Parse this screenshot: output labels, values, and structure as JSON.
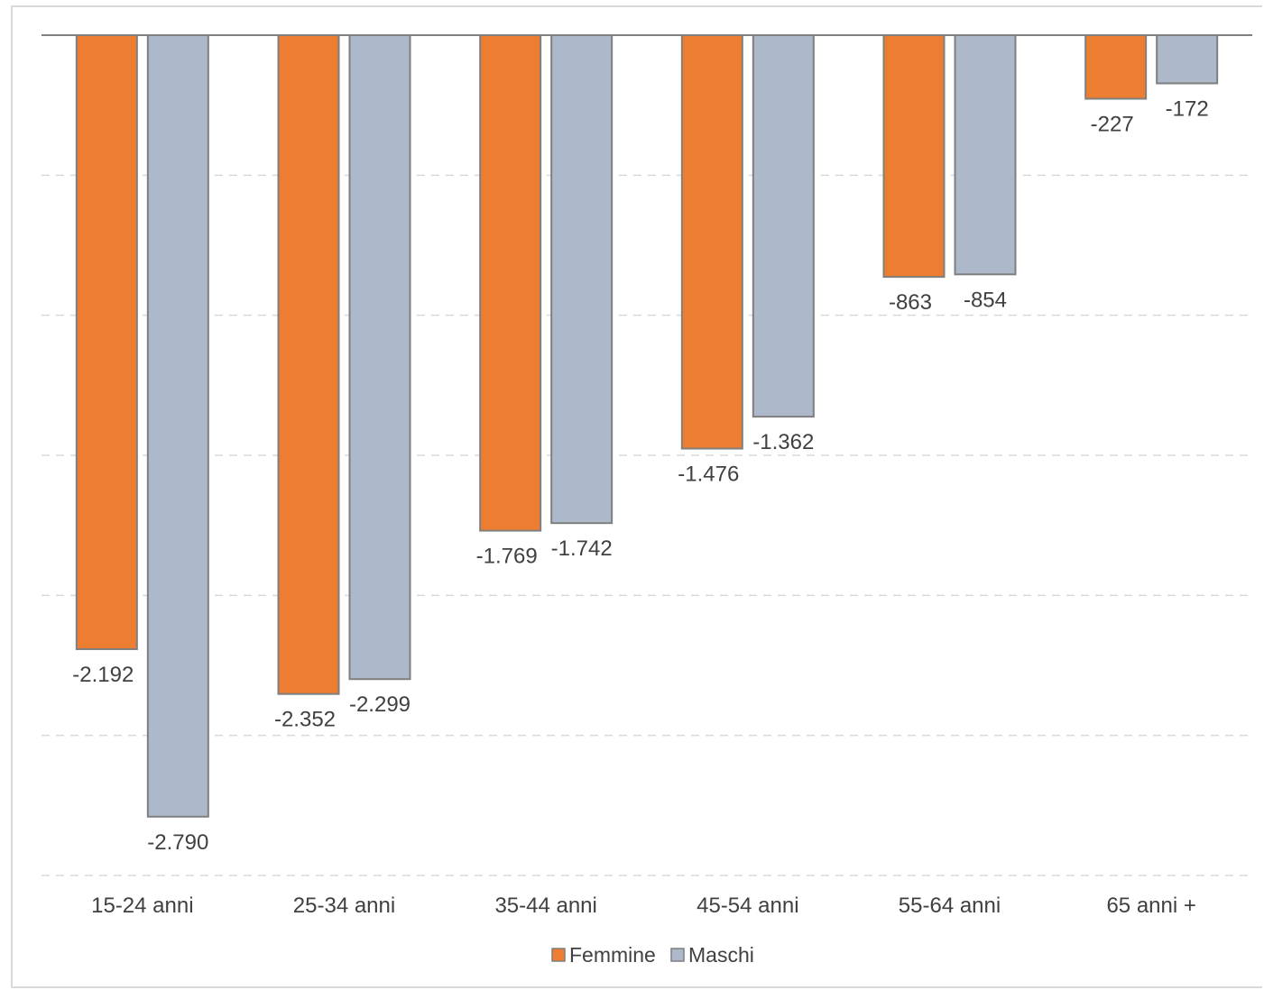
{
  "chart_data": {
    "type": "bar",
    "categories": [
      "15-24 anni",
      "25-34 anni",
      "35-44 anni",
      "45-54 anni",
      "55-64 anni",
      "65 anni +"
    ],
    "series": [
      {
        "name": "Femmine",
        "color": "#ed7d31",
        "values": [
          -2192,
          -2352,
          -1769,
          -1476,
          -863,
          -227
        ],
        "labels": [
          "-2.192",
          "-2.352",
          "-1.769",
          "-1.476",
          "-863",
          "-227"
        ]
      },
      {
        "name": "Maschi",
        "color": "#adb9ca",
        "values": [
          -2790,
          -2299,
          -1742,
          -1362,
          -854,
          -172
        ],
        "labels": [
          "-2.790",
          "-2.299",
          "-1.742",
          "-1.362",
          "-854",
          "-172"
        ]
      }
    ],
    "ylim": [
      -3000,
      0
    ],
    "grid": true,
    "grid_style": "dashed",
    "legend_position": "bottom",
    "bar_border_color": "#7f7f7f"
  }
}
